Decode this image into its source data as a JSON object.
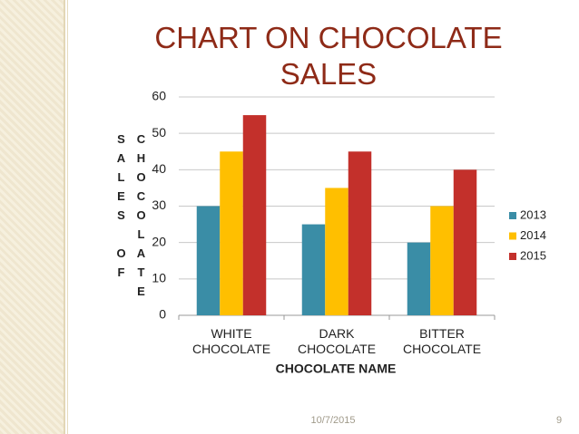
{
  "chart_data": {
    "type": "bar",
    "title": "CHART ON CHOCOLATE SALES",
    "x_label": "CHOCOLATE NAME",
    "y_label": "SALES OF CHOCOLATE",
    "categories": [
      "WHITE CHOCOLATE",
      "DARK CHOCOLATE",
      "BITTER CHOCOLATE"
    ],
    "series": [
      {
        "name": "2013",
        "color": "#3a8da6",
        "values": [
          30,
          25,
          20
        ]
      },
      {
        "name": "2014",
        "color": "#ffbf00",
        "values": [
          45,
          35,
          30
        ]
      },
      {
        "name": "2015",
        "color": "#c3302b",
        "values": [
          55,
          45,
          40
        ]
      }
    ],
    "ylim": [
      0,
      60
    ],
    "yticks": [
      0,
      10,
      20,
      30,
      40,
      50,
      60
    ],
    "grid": true,
    "legend": "right"
  },
  "footer": {
    "date": "10/7/2015",
    "page": "9"
  }
}
